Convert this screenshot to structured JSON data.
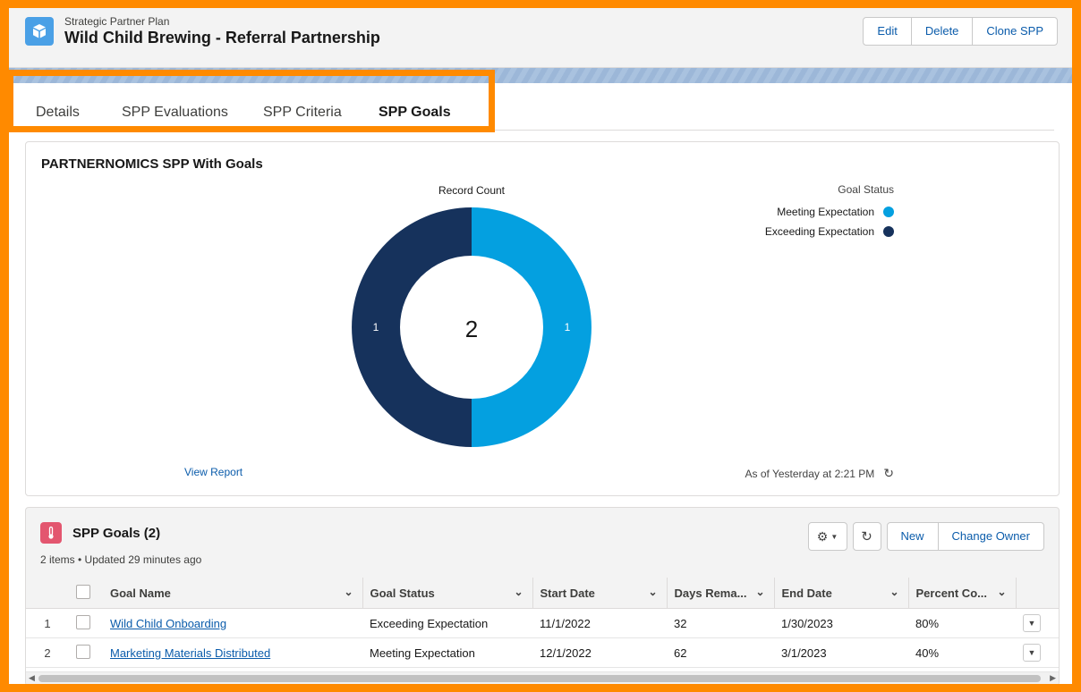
{
  "header": {
    "object_label": "Strategic Partner Plan",
    "record_name": "Wild Child Brewing - Referral Partnership",
    "icon": "cube-icon",
    "actions": [
      "Edit",
      "Delete",
      "Clone SPP"
    ]
  },
  "tabs": [
    {
      "label": "Details",
      "active": false
    },
    {
      "label": "SPP Evaluations",
      "active": false
    },
    {
      "label": "SPP Criteria",
      "active": false
    },
    {
      "label": "SPP Goals",
      "active": true
    }
  ],
  "chart_card": {
    "title": "PARTNERNOMICS SPP With Goals",
    "view_report": "View Report",
    "as_of": "As of Yesterday at 2:21 PM"
  },
  "chart_data": {
    "type": "pie",
    "variant": "donut",
    "title": "Record Count",
    "center_total": "2",
    "legend_title": "Goal Status",
    "legend_position": "top-right",
    "slices": [
      {
        "label": "Meeting Expectation",
        "value": 1,
        "color": "#04a0e0"
      },
      {
        "label": "Exceeding Expectation",
        "value": 1,
        "color": "#16325c"
      }
    ]
  },
  "related_list": {
    "title": "SPP Goals (2)",
    "meta": "2 items • Updated 29 minutes ago",
    "icon": "thermometer-icon",
    "icon_color": "#e3566f",
    "buttons": [
      "New",
      "Change Owner"
    ],
    "columns": [
      "Goal Name",
      "Goal Status",
      "Start Date",
      "Days Rema...",
      "End Date",
      "Percent Co..."
    ],
    "rows": [
      {
        "num": "1",
        "name": "Wild Child Onboarding",
        "status": "Exceeding Expectation",
        "start": "11/1/2022",
        "days": "32",
        "end": "1/30/2023",
        "percent": "80%"
      },
      {
        "num": "2",
        "name": "Marketing Materials Distributed",
        "status": "Meeting Expectation",
        "start": "12/1/2022",
        "days": "62",
        "end": "3/1/2023",
        "percent": "40%"
      }
    ]
  }
}
